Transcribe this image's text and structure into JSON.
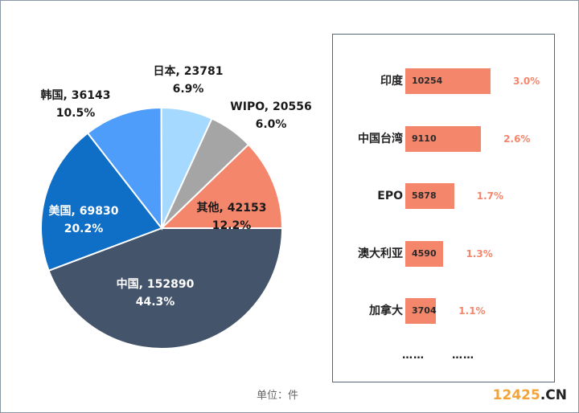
{
  "chart_data": [
    {
      "type": "pie",
      "slices": [
        {
          "label": "中国",
          "value": 152890,
          "percent": "44.3%",
          "color": "#44546a",
          "text_color": "#ffffff"
        },
        {
          "label": "美国",
          "value": 69830,
          "percent": "20.2%",
          "color": "#0f6fc6",
          "text_color": "#ffffff"
        },
        {
          "label": "韩国",
          "value": 36143,
          "percent": "10.5%",
          "color": "#4f9dfa",
          "text_color": "#1a1a1a"
        },
        {
          "label": "日本",
          "value": 23781,
          "percent": "6.9%",
          "color": "#a6d9ff",
          "text_color": "#1a1a1a"
        },
        {
          "label": "WIPO",
          "value": 20556,
          "percent": "6.0%",
          "color": "#a5a5a5",
          "text_color": "#1a1a1a"
        },
        {
          "label": "其他",
          "value": 42153,
          "percent": "12.2%",
          "color": "#f4866c",
          "text_color": "#1a1a1a"
        }
      ],
      "unit_label": "单位：件"
    },
    {
      "type": "bar",
      "orientation": "horizontal",
      "categories": [
        "印度",
        "中国台湾",
        "EPO",
        "澳大利亚",
        "加拿大"
      ],
      "values": [
        10254,
        9110,
        5878,
        4590,
        3704
      ],
      "percents": [
        "3.0%",
        "2.6%",
        "1.7%",
        "1.3%",
        "1.1%"
      ],
      "bar_color": "#f4866c",
      "ellipsis": [
        "……",
        "……"
      ]
    }
  ],
  "watermark": {
    "number": "12425",
    "suffix": ".CN"
  }
}
